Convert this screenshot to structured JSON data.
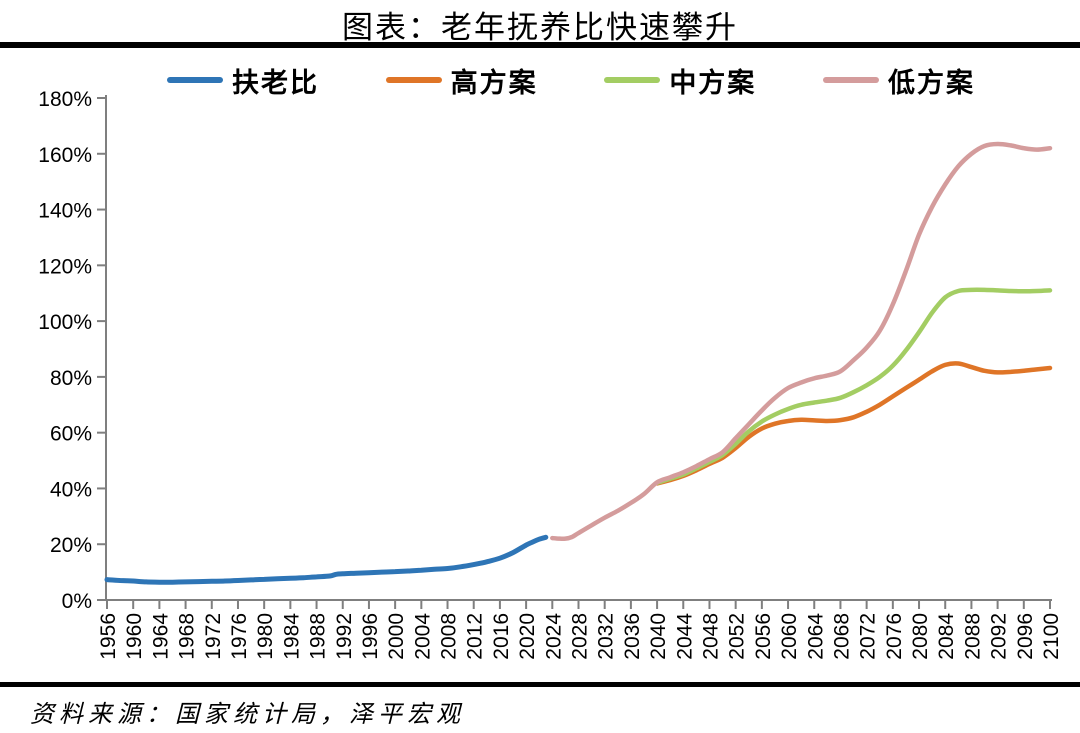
{
  "title": "图表：老年抚养比快速攀升",
  "source": "资料来源：国家统计局，泽平宏观",
  "legend": [
    {
      "label": "扶老比",
      "color": "#2E75B6"
    },
    {
      "label": "高方案",
      "color": "#DF7527"
    },
    {
      "label": "中方案",
      "color": "#A3CD63"
    },
    {
      "label": "低方案",
      "color": "#D49C9C"
    }
  ],
  "chart_data": {
    "type": "line",
    "title": "图表：老年抚养比快速攀升",
    "xlabel": "",
    "ylabel": "",
    "ylim": [
      0,
      180
    ],
    "y_tick_step": 20,
    "y_tick_labels": [
      "0%",
      "20%",
      "40%",
      "60%",
      "80%",
      "100%",
      "120%",
      "140%",
      "160%",
      "180%"
    ],
    "x_ticks": [
      1956,
      1960,
      1964,
      1968,
      1972,
      1976,
      1980,
      1984,
      1988,
      1992,
      1996,
      2000,
      2004,
      2008,
      2012,
      2016,
      2020,
      2024,
      2028,
      2032,
      2036,
      2040,
      2044,
      2048,
      2052,
      2056,
      2060,
      2064,
      2068,
      2072,
      2076,
      2080,
      2084,
      2088,
      2092,
      2096,
      2100
    ],
    "xlim": [
      1956,
      2100
    ],
    "grid": false,
    "legend_position": "top",
    "axis_color": "#7F7F7F",
    "series": [
      {
        "name": "扶老比",
        "color": "#2E75B6",
        "width": 5,
        "points": [
          [
            1956,
            7.3
          ],
          [
            1958,
            7.0
          ],
          [
            1960,
            6.8
          ],
          [
            1962,
            6.5
          ],
          [
            1964,
            6.4
          ],
          [
            1966,
            6.4
          ],
          [
            1968,
            6.5
          ],
          [
            1970,
            6.6
          ],
          [
            1972,
            6.7
          ],
          [
            1974,
            6.8
          ],
          [
            1976,
            7.0
          ],
          [
            1978,
            7.2
          ],
          [
            1980,
            7.4
          ],
          [
            1982,
            7.6
          ],
          [
            1984,
            7.8
          ],
          [
            1986,
            8.0
          ],
          [
            1988,
            8.3
          ],
          [
            1990,
            8.6
          ],
          [
            1991,
            9.2
          ],
          [
            1992,
            9.4
          ],
          [
            1994,
            9.6
          ],
          [
            1996,
            9.8
          ],
          [
            1998,
            10.0
          ],
          [
            2000,
            10.2
          ],
          [
            2002,
            10.4
          ],
          [
            2004,
            10.7
          ],
          [
            2006,
            11.0
          ],
          [
            2008,
            11.3
          ],
          [
            2010,
            11.9
          ],
          [
            2012,
            12.7
          ],
          [
            2014,
            13.7
          ],
          [
            2016,
            15.0
          ],
          [
            2018,
            17.0
          ],
          [
            2020,
            19.7
          ],
          [
            2021,
            20.8
          ],
          [
            2022,
            21.8
          ],
          [
            2023,
            22.5
          ]
        ]
      },
      {
        "name": "高方案",
        "color": "#DF7527",
        "width": 4.5,
        "points": [
          [
            2040,
            41.8
          ],
          [
            2042,
            43.0
          ],
          [
            2044,
            44.5
          ],
          [
            2046,
            46.5
          ],
          [
            2048,
            48.8
          ],
          [
            2050,
            51.0
          ],
          [
            2052,
            54.5
          ],
          [
            2054,
            58.5
          ],
          [
            2056,
            61.5
          ],
          [
            2058,
            63.2
          ],
          [
            2060,
            64.2
          ],
          [
            2062,
            64.6
          ],
          [
            2064,
            64.4
          ],
          [
            2066,
            64.2
          ],
          [
            2068,
            64.5
          ],
          [
            2070,
            65.5
          ],
          [
            2072,
            67.5
          ],
          [
            2074,
            70.0
          ],
          [
            2076,
            73.0
          ],
          [
            2078,
            76.0
          ],
          [
            2080,
            79.0
          ],
          [
            2082,
            82.0
          ],
          [
            2084,
            84.3
          ],
          [
            2086,
            84.8
          ],
          [
            2088,
            83.5
          ],
          [
            2090,
            82.2
          ],
          [
            2092,
            81.6
          ],
          [
            2094,
            81.8
          ],
          [
            2096,
            82.2
          ],
          [
            2098,
            82.7
          ],
          [
            2100,
            83.2
          ]
        ]
      },
      {
        "name": "中方案",
        "color": "#A3CD63",
        "width": 4.5,
        "points": [
          [
            2040,
            42.0
          ],
          [
            2042,
            43.5
          ],
          [
            2044,
            45.0
          ],
          [
            2046,
            47.2
          ],
          [
            2048,
            49.5
          ],
          [
            2050,
            52.0
          ],
          [
            2052,
            56.0
          ],
          [
            2054,
            60.5
          ],
          [
            2056,
            64.0
          ],
          [
            2058,
            66.5
          ],
          [
            2060,
            68.5
          ],
          [
            2062,
            70.0
          ],
          [
            2064,
            70.8
          ],
          [
            2066,
            71.5
          ],
          [
            2068,
            72.5
          ],
          [
            2070,
            74.5
          ],
          [
            2072,
            77.0
          ],
          [
            2074,
            80.0
          ],
          [
            2076,
            84.0
          ],
          [
            2078,
            89.5
          ],
          [
            2080,
            96.0
          ],
          [
            2082,
            103.0
          ],
          [
            2084,
            108.5
          ],
          [
            2086,
            110.8
          ],
          [
            2088,
            111.2
          ],
          [
            2090,
            111.2
          ],
          [
            2092,
            111.0
          ],
          [
            2094,
            110.8
          ],
          [
            2096,
            110.7
          ],
          [
            2098,
            110.8
          ],
          [
            2100,
            111.0
          ]
        ]
      },
      {
        "name": "低方案",
        "color": "#D49C9C",
        "width": 4.5,
        "points": [
          [
            2024,
            22.2
          ],
          [
            2025,
            22.0
          ],
          [
            2026,
            22.0
          ],
          [
            2027,
            22.6
          ],
          [
            2028,
            24.0
          ],
          [
            2030,
            26.8
          ],
          [
            2032,
            29.5
          ],
          [
            2034,
            32.0
          ],
          [
            2036,
            34.8
          ],
          [
            2038,
            38.0
          ],
          [
            2040,
            42.2
          ],
          [
            2042,
            44.0
          ],
          [
            2044,
            45.8
          ],
          [
            2046,
            48.0
          ],
          [
            2048,
            50.5
          ],
          [
            2050,
            53.0
          ],
          [
            2052,
            58.0
          ],
          [
            2054,
            63.0
          ],
          [
            2056,
            68.0
          ],
          [
            2058,
            72.5
          ],
          [
            2060,
            76.0
          ],
          [
            2062,
            78.0
          ],
          [
            2064,
            79.5
          ],
          [
            2066,
            80.5
          ],
          [
            2068,
            82.0
          ],
          [
            2070,
            86.0
          ],
          [
            2072,
            90.5
          ],
          [
            2074,
            96.5
          ],
          [
            2076,
            106.0
          ],
          [
            2078,
            118.0
          ],
          [
            2080,
            131.0
          ],
          [
            2082,
            141.0
          ],
          [
            2084,
            149.0
          ],
          [
            2086,
            155.5
          ],
          [
            2088,
            160.0
          ],
          [
            2090,
            162.8
          ],
          [
            2092,
            163.5
          ],
          [
            2094,
            163.0
          ],
          [
            2096,
            162.0
          ],
          [
            2098,
            161.5
          ],
          [
            2100,
            162.0
          ]
        ]
      }
    ]
  }
}
